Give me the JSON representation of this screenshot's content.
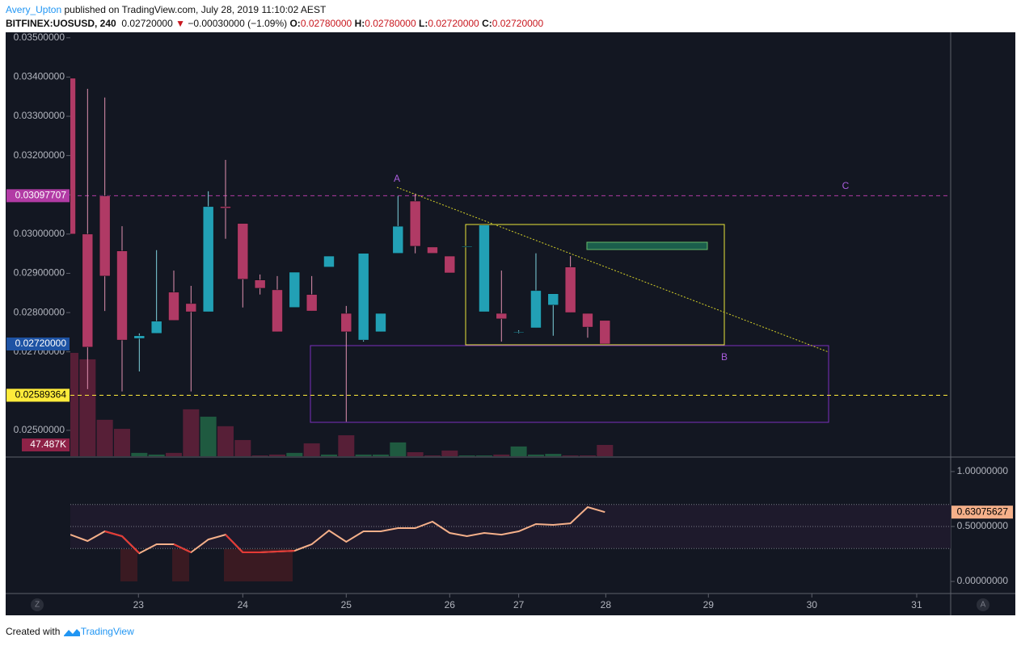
{
  "header": {
    "author": "Avery_Upton",
    "published": "published on TradingView.com, July 28, 2019 11:10:02 AEST",
    "symbol": "BITFINEX:UOSUSD, 240",
    "last": "0.02720000",
    "change": "−0.00030000 (−1.09%)",
    "ohlc": [
      {
        "key": "O:",
        "value": "0.02780000"
      },
      {
        "key": "H:",
        "value": "0.02780000"
      },
      {
        "key": "L:",
        "value": "0.02720000"
      },
      {
        "key": "C:",
        "value": "0.02720000"
      }
    ]
  },
  "footer": {
    "text": "Created with",
    "brand": "TradingView"
  },
  "buttons": [
    "Z",
    "A"
  ],
  "chart_data": [
    {
      "type": "candlestick",
      "up_color": "#22a0b5",
      "down_color": "#b03a65",
      "volume_up_color": "#1f5a40",
      "volume_down_color": "#571f37",
      "xlim": [
        0,
        51.05
      ],
      "xticks": [
        {
          "value": 3.95,
          "label": "23"
        },
        {
          "value": 10,
          "label": "24"
        },
        {
          "value": 16,
          "label": "25"
        },
        {
          "value": 22,
          "label": "26"
        },
        {
          "value": 26,
          "label": "27"
        },
        {
          "value": 31.05,
          "label": "28"
        },
        {
          "value": 37,
          "label": "29"
        },
        {
          "value": 43,
          "label": "30"
        },
        {
          "value": 49.08,
          "label": "31"
        }
      ],
      "ylim": [
        0.02434,
        0.03514
      ],
      "yticks": [
        {
          "value": 0.025,
          "label": "0.02500000"
        },
        {
          "value": 0.027,
          "label": "0.02700000"
        },
        {
          "value": 0.028,
          "label": "0.02800000"
        },
        {
          "value": 0.029,
          "label": "0.02900000"
        },
        {
          "value": 0.03,
          "label": "0.03000000"
        },
        {
          "value": 0.031,
          "label": "0.03100000"
        },
        {
          "value": 0.032,
          "label": "0.03200000"
        },
        {
          "value": 0.033,
          "label": "0.03300000"
        },
        {
          "value": 0.034,
          "label": "0.03400000"
        },
        {
          "value": 0.035,
          "label": "0.03500000"
        }
      ],
      "open": [
        0.03397,
        0.03,
        0.03097,
        0.02957,
        0.02734,
        0.02747,
        0.02852,
        0.02823,
        0.02802,
        0.0307,
        0.03027,
        0.02883,
        0.02858,
        0.02813,
        0.02846,
        0.02916,
        0.02798,
        0.0273,
        0.02751,
        0.02951,
        0.03084,
        0.02967,
        0.02944,
        0.02969,
        0.02802,
        0.02798,
        0.02751,
        0.02761,
        0.02819,
        0.02916,
        0.02798,
        0.0278
      ],
      "high": [
        0.03397,
        0.0337,
        0.03348,
        0.0302,
        0.02747,
        0.02959,
        0.02907,
        0.02868,
        0.03109,
        0.03189,
        0.03027,
        0.02897,
        0.02893,
        0.02903,
        0.02893,
        0.02944,
        0.02817,
        0.02951,
        0.02798,
        0.03097,
        0.03103,
        0.02967,
        0.02944,
        0.02969,
        0.03023,
        0.02907,
        0.02755,
        0.02951,
        0.02848,
        0.02944,
        0.02798,
        0.0278
      ],
      "low": [
        0.03,
        0.02605,
        0.02804,
        0.02599,
        0.0265,
        0.02747,
        0.0278,
        0.02599,
        0.02802,
        0.02988,
        0.02813,
        0.02846,
        0.02751,
        0.02813,
        0.02804,
        0.02916,
        0.02522,
        0.02726,
        0.02751,
        0.02951,
        0.02951,
        0.02951,
        0.02901,
        0.02969,
        0.02802,
        0.02726,
        0.02747,
        0.02761,
        0.02741,
        0.028,
        0.02736,
        0.0272
      ],
      "close": [
        0.03,
        0.02712,
        0.02893,
        0.0273,
        0.02741,
        0.02778,
        0.0278,
        0.02802,
        0.0307,
        0.03066,
        0.02885,
        0.02862,
        0.02751,
        0.02903,
        0.02804,
        0.02944,
        0.02751,
        0.02951,
        0.02798,
        0.0302,
        0.02969,
        0.02951,
        0.02901,
        0.02969,
        0.03023,
        0.02784,
        0.02751,
        0.02856,
        0.02848,
        0.028,
        0.02763,
        0.0272
      ],
      "volume": [
        434000,
        407000,
        153000,
        115000,
        14000,
        7000,
        14000,
        197000,
        166000,
        126000,
        68000,
        3400,
        7000,
        14000,
        54000,
        7000,
        88000,
        7000,
        7000,
        58000,
        17000,
        3400,
        24000,
        3400,
        3400,
        7000,
        41000,
        7000,
        10000,
        3400,
        3400,
        47487
      ],
      "y2lim": [
        0,
        1780000
      ],
      "volume_label": "47.487K",
      "last_price": {
        "value": 0.0272,
        "label": "0.02720000"
      },
      "levels": [
        {
          "value": 0.03097707,
          "color": "#b23ba5"
        },
        {
          "value": 0.02589364,
          "color": "#ffeb3b"
        }
      ],
      "annotations": [
        "A",
        "B",
        "C"
      ]
    },
    {
      "type": "line",
      "ylim": [
        -0.11,
        1.132
      ],
      "yticks": [
        {
          "value": 0,
          "label": "0.00000000"
        },
        {
          "value": 0.5,
          "label": "0.50000000"
        },
        {
          "value": 1,
          "label": "1.00000000"
        }
      ],
      "levels": [
        0.3,
        0.5,
        0.7
      ],
      "series": [
        {
          "color": "#f5b08a",
          "values": [
            0.426,
            0.368,
            0.456,
            0.412,
            0.257,
            0.338,
            0.338,
            0.265,
            0.382,
            0.426,
            0.265,
            0.265,
            0.272,
            0.279,
            0.338,
            0.463,
            0.36,
            0.456,
            0.456,
            0.485,
            0.485,
            0.544,
            0.441,
            0.412,
            0.441,
            0.426,
            0.456,
            0.522,
            0.515,
            0.529,
            0.676,
            0.63075627
          ]
        },
        {
          "color": "#e53935",
          "values": [
            null,
            null,
            0.456,
            0.412,
            0.257,
            null,
            0.338,
            0.265,
            null,
            0.426,
            0.265,
            0.265,
            0.272,
            0.279,
            null,
            null,
            null,
            null,
            null,
            null,
            null,
            null,
            null,
            null,
            null,
            null,
            null,
            null,
            null,
            null,
            null,
            null
          ]
        }
      ]
    }
  ]
}
